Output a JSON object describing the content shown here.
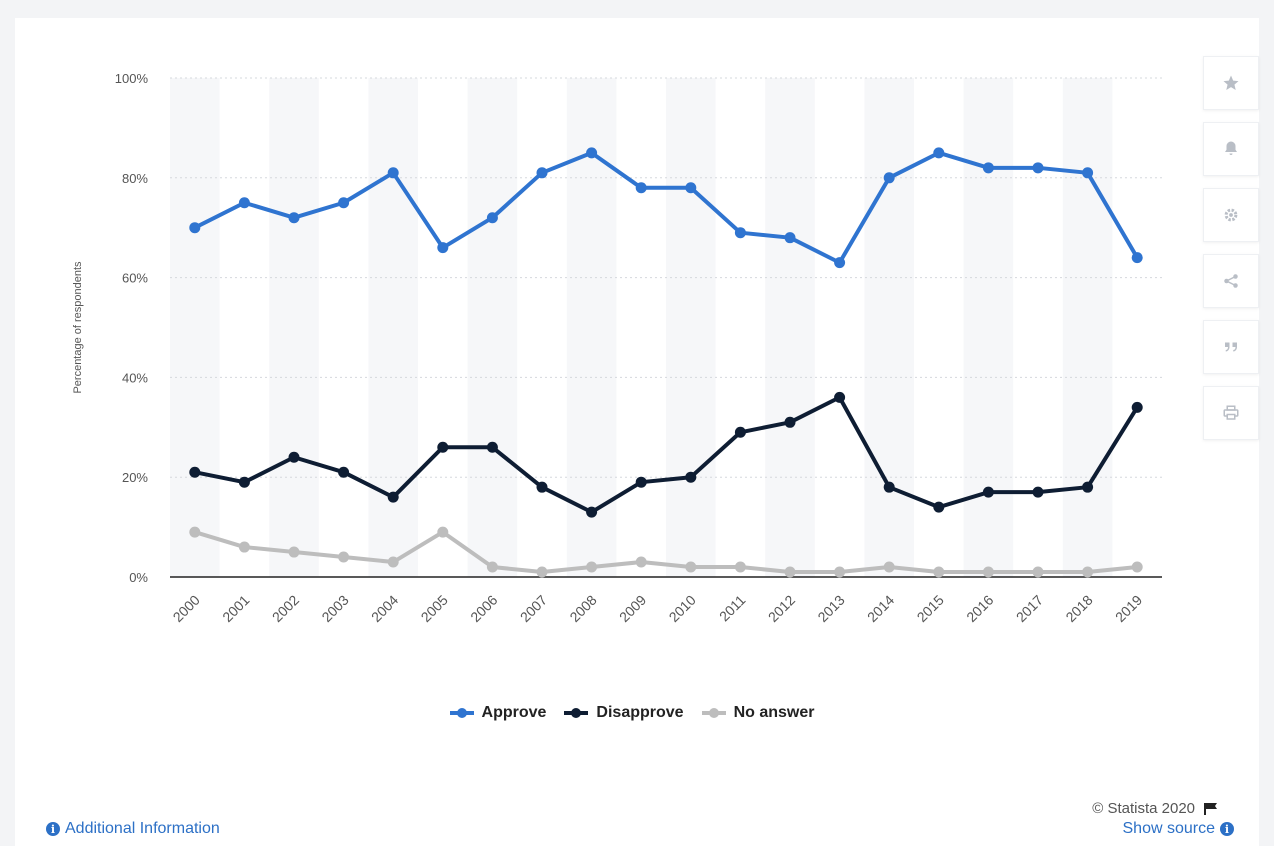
{
  "chart_data": {
    "type": "line",
    "ylabel": "Percentage of respondents",
    "ylim": [
      0,
      100
    ],
    "yticks": [
      0,
      20,
      40,
      60,
      80,
      100
    ],
    "ytick_labels": [
      "0%",
      "20%",
      "40%",
      "60%",
      "80%",
      "100%"
    ],
    "categories": [
      "2000",
      "2001",
      "2002",
      "2003",
      "2004",
      "2005",
      "2006",
      "2007",
      "2008",
      "2009",
      "2010",
      "2011",
      "2012",
      "2013",
      "2014",
      "2015",
      "2016",
      "2017",
      "2018",
      "2019"
    ],
    "grid": true,
    "legend_position": "bottom",
    "series": [
      {
        "name": "Approve",
        "color": "#2f74d0",
        "values": [
          70,
          75,
          72,
          75,
          81,
          66,
          72,
          81,
          85,
          78,
          78,
          69,
          68,
          63,
          80,
          85,
          82,
          82,
          81,
          64
        ]
      },
      {
        "name": "Disapprove",
        "color": "#0e1d33",
        "values": [
          21,
          19,
          24,
          21,
          16,
          26,
          26,
          18,
          13,
          19,
          20,
          29,
          31,
          36,
          18,
          14,
          17,
          17,
          18,
          34
        ]
      },
      {
        "name": "No answer",
        "color": "#bdbdbd",
        "values": [
          9,
          6,
          5,
          4,
          3,
          9,
          2,
          1,
          2,
          3,
          2,
          2,
          1,
          1,
          2,
          1,
          1,
          1,
          1,
          2
        ]
      }
    ]
  },
  "toolbar": {
    "icons": [
      "star-icon",
      "bell-icon",
      "gear-icon",
      "share-icon",
      "quote-icon",
      "print-icon"
    ]
  },
  "credits": {
    "text": "© Statista 2020"
  },
  "footer": {
    "additional_info": "Additional Information",
    "show_source": "Show source"
  }
}
